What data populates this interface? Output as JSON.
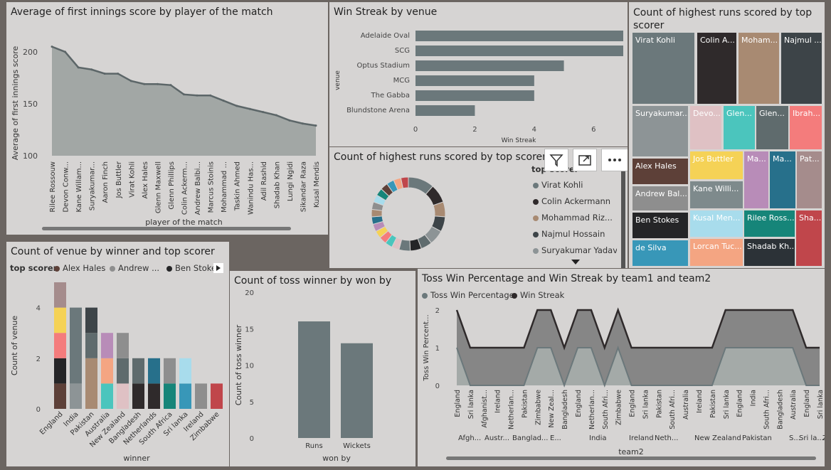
{
  "panel1": {
    "title": "Average of first innings score by player of the match",
    "xlabel": "player of the match",
    "ylabel": "Average of first innings score"
  },
  "panel2": {
    "title": "Win Streak by venue",
    "xlabel": "Win Streak",
    "ylabel": "venue"
  },
  "panel3": {
    "title_line1": "Count of highest runs scored by top",
    "title_line2": "scorer"
  },
  "panel4": {
    "title": "Count of highest runs scored by top scorer",
    "legend_title": "top scorer",
    "legend": [
      {
        "label": "Virat Kohli",
        "color": "#6b787b"
      },
      {
        "label": "Colin Ackermann",
        "color": "#2f2a2b"
      },
      {
        "label": "Mohammad Riz...",
        "color": "#a88a72"
      },
      {
        "label": "Najmul Hossain",
        "color": "#3d4448"
      },
      {
        "label": "Suryakumar Yadav",
        "color": "#8d9496"
      }
    ]
  },
  "panel5": {
    "title": "Count of venue by winner and top scorer",
    "legend_title": "top scorer",
    "legend": [
      {
        "label": "Alex Hales",
        "color": "#5d4038"
      },
      {
        "label": "Andrew ...",
        "color": "#8e8e8e"
      },
      {
        "label": "Ben Stokes",
        "color": "#252527"
      }
    ],
    "xlabel": "winner",
    "ylabel": "Count of venue"
  },
  "panel6": {
    "title": "Count of toss winner by won by",
    "xlabel": "won by",
    "ylabel": "Count of toss winner"
  },
  "panel7": {
    "title": "Toss Win Percentage and Win Streak by team1 and team2",
    "legend": [
      {
        "label": "Toss Win Percentage",
        "color": "#6b787b"
      },
      {
        "label": "Win Streak",
        "color": "#2f2a2b"
      }
    ],
    "xlabel": "team2",
    "ylabel": "Toss Win Percent..."
  },
  "colors": {
    "panel_bg": "#d6d4d3",
    "background": "#6b6561",
    "bar": "#6b787b"
  },
  "chart_data": [
    {
      "id": "avg-first-innings",
      "type": "area",
      "categories": [
        "Rilee Rossouw",
        "Devon Conw...",
        "Kane Willam...",
        "Suryakumar...",
        "Aaron Finch",
        "Jos Buttler",
        "Virat Kohli",
        "Alex Hales",
        "Glenn Maxwell",
        "Glenn Phillips",
        "Colin Ackerm...",
        "Andrew Balbi...",
        "Marcus Stoinis",
        "Mohammad ...",
        "Taskin Ahmed",
        "Wanindu Has...",
        "Adil Rashid",
        "Shadab Khan",
        "Lungi Ngidi",
        "Sikandar Raza",
        "Kusal Mendis"
      ],
      "values": [
        205,
        200,
        185,
        183,
        179,
        179,
        172,
        169,
        169,
        168,
        159,
        158,
        158,
        153,
        148,
        145,
        142,
        139,
        134,
        131,
        129
      ],
      "xlabel": "player of the match",
      "ylabel": "Average of first innings score",
      "ylim": [
        100,
        215
      ],
      "yticks": [
        100,
        150,
        200
      ]
    },
    {
      "id": "win-streak-venue",
      "type": "bar",
      "orientation": "horizontal",
      "categories": [
        "Adelaide Oval",
        "SCG",
        "Optus Stadium",
        "MCG",
        "The Gabba",
        "Blundstone Arena"
      ],
      "values": [
        7,
        7,
        5,
        4,
        4,
        2
      ],
      "xlabel": "Win Streak",
      "ylabel": "venue",
      "xlim": [
        0,
        7
      ],
      "xticks": [
        0,
        2,
        4,
        6
      ]
    },
    {
      "id": "treemap-top-scorer",
      "type": "treemap",
      "items": [
        {
          "label": "Virat Kohli",
          "color": "#6b787b"
        },
        {
          "label": "Colin A...",
          "color": "#2f2a2b"
        },
        {
          "label": "Moham...",
          "color": "#a88a72"
        },
        {
          "label": "Najmul ...",
          "color": "#3d4448"
        },
        {
          "label": "Suryakumar...",
          "color": "#8d9496"
        },
        {
          "label": "Devo...",
          "color": "#dfc1c4"
        },
        {
          "label": "Glen...",
          "color": "#4bc5bd"
        },
        {
          "label": "Glen...",
          "color": "#5f6b6d"
        },
        {
          "label": "Ibrah...",
          "color": "#f47c7c"
        },
        {
          "label": "Alex Hales",
          "color": "#5d4038"
        },
        {
          "label": "Jos Buttler",
          "color": "#f5d256"
        },
        {
          "label": "Ma...",
          "color": "#b88cb8"
        },
        {
          "label": "Ma...",
          "color": "#27708b"
        },
        {
          "label": "Pat...",
          "color": "#a58c8c"
        },
        {
          "label": "Andrew Bal...",
          "color": "#8e8e8e"
        },
        {
          "label": "Kane Willi...",
          "color": "#7e8a8c"
        },
        {
          "label": "Ben Stokes",
          "color": "#252527"
        },
        {
          "label": "Kusal Men...",
          "color": "#a8dcec"
        },
        {
          "label": "Rilee Ross...",
          "color": "#168579"
        },
        {
          "label": "Sha...",
          "color": "#c0464b"
        },
        {
          "label": "de Silva",
          "color": "#3897b8"
        },
        {
          "label": "Lorcan Tuc...",
          "color": "#f4a582"
        },
        {
          "label": "Shadab Kh...",
          "color": "#2c3237"
        }
      ]
    },
    {
      "id": "donut-top-scorer",
      "type": "pie",
      "donut": true,
      "slices": [
        {
          "value": 7,
          "color": "#6b787b"
        },
        {
          "value": 5,
          "color": "#2f2a2b"
        },
        {
          "value": 4,
          "color": "#a88a72"
        },
        {
          "value": 4,
          "color": "#3d4448"
        },
        {
          "value": 4,
          "color": "#8d9496"
        },
        {
          "value": 3,
          "color": "#5f6b6d"
        },
        {
          "value": 3,
          "color": "#252527"
        },
        {
          "value": 3,
          "color": "#6b787b"
        },
        {
          "value": 2,
          "color": "#dfc1c4"
        },
        {
          "value": 2,
          "color": "#4bc5bd"
        },
        {
          "value": 2,
          "color": "#f47c7c"
        },
        {
          "value": 2,
          "color": "#f5d256"
        },
        {
          "value": 2,
          "color": "#b88cb8"
        },
        {
          "value": 2,
          "color": "#27708b"
        },
        {
          "value": 2,
          "color": "#a88a72"
        },
        {
          "value": 2,
          "color": "#8e8e8e"
        },
        {
          "value": 2,
          "color": "#a8dcec"
        },
        {
          "value": 2,
          "color": "#168579"
        },
        {
          "value": 2,
          "color": "#5d4038"
        },
        {
          "value": 2,
          "color": "#3897b8"
        },
        {
          "value": 2,
          "color": "#f4a582"
        },
        {
          "value": 2,
          "color": "#c0464b"
        }
      ]
    },
    {
      "id": "venue-by-winner",
      "type": "bar",
      "stacked": true,
      "categories": [
        "England",
        "India",
        "Pakistan",
        "Australia",
        "New Zealand",
        "Bangladesh",
        "Netherlands",
        "South Africa",
        "Sri lanka",
        "Ireland",
        "Zimbabwe"
      ],
      "stacks": [
        [
          {
            "v": 1,
            "c": "#5d4038"
          },
          {
            "v": 1,
            "c": "#252527"
          },
          {
            "v": 1,
            "c": "#f47c7c"
          },
          {
            "v": 1,
            "c": "#f5d256"
          },
          {
            "v": 1,
            "c": "#a58c8c"
          }
        ],
        [
          {
            "v": 1,
            "c": "#8d9496"
          },
          {
            "v": 3,
            "c": "#6b787b"
          }
        ],
        [
          {
            "v": 2,
            "c": "#a88a72"
          },
          {
            "v": 1,
            "c": "#5f6b6d"
          },
          {
            "v": 1,
            "c": "#3d4448"
          }
        ],
        [
          {
            "v": 1,
            "c": "#4bc5bd"
          },
          {
            "v": 1,
            "c": "#f4a582"
          },
          {
            "v": 1,
            "c": "#b88cb8"
          }
        ],
        [
          {
            "v": 1,
            "c": "#dfc1c4"
          },
          {
            "v": 1,
            "c": "#5f6b6d"
          },
          {
            "v": 1,
            "c": "#8e8e8e"
          }
        ],
        [
          {
            "v": 1,
            "c": "#2f2a2b"
          },
          {
            "v": 1,
            "c": "#5f6b6d"
          }
        ],
        [
          {
            "v": 1,
            "c": "#2f2a2b"
          },
          {
            "v": 1,
            "c": "#27708b"
          }
        ],
        [
          {
            "v": 1,
            "c": "#168579"
          },
          {
            "v": 1,
            "c": "#8e8e8e"
          }
        ],
        [
          {
            "v": 1,
            "c": "#3897b8"
          },
          {
            "v": 1,
            "c": "#a8dcec"
          }
        ],
        [
          {
            "v": 1,
            "c": "#8e8e8e"
          }
        ],
        [
          {
            "v": 1,
            "c": "#c0464b"
          }
        ]
      ],
      "xlabel": "winner",
      "ylabel": "Count of venue",
      "ylim": [
        0,
        5
      ],
      "yticks": [
        0,
        2,
        4
      ]
    },
    {
      "id": "toss-winner-by-won-by",
      "type": "bar",
      "categories": [
        "Runs",
        "Wickets"
      ],
      "values": [
        16,
        13
      ],
      "xlabel": "won by",
      "ylabel": "Count of toss winner",
      "ylim": [
        0,
        20
      ],
      "yticks": [
        0,
        5,
        10,
        15,
        20
      ]
    },
    {
      "id": "toss-win-streak",
      "type": "area",
      "categories": [
        "England",
        "Sri lanka",
        "Afghanist...",
        "Ireland",
        "Netherlan...",
        "Pakistan",
        "Zimbabwe",
        "New Zeal...",
        "Bangladesh",
        "England",
        "Netherlan...",
        "South Afri...",
        "Zimbabwe",
        "England",
        "Sri lanka",
        "Pakistan",
        "South Afri...",
        "Australia",
        "Ireland",
        "Pakistan",
        "Sri lanka",
        "England",
        "India",
        "South Afri...",
        "Bangladesh",
        "Australia",
        "England",
        "Sri lanka"
      ],
      "groups": [
        "Afgh...",
        "Austr...",
        "Banglad...",
        "E...",
        "India",
        "Ireland",
        "Neth...",
        "New Zealand",
        "Pakistan",
        "S...",
        "Sri la...",
        "Z..."
      ],
      "series": [
        {
          "name": "Win Streak",
          "values": [
            2,
            1,
            1,
            1,
            1,
            1,
            2,
            2,
            1,
            2,
            2,
            1,
            2,
            1,
            1,
            1,
            1,
            1,
            1,
            1,
            2,
            2,
            2,
            2,
            2,
            2,
            1,
            1
          ]
        },
        {
          "name": "Toss Win Percentage",
          "values": [
            1,
            0,
            0,
            0,
            0,
            0,
            1,
            1,
            0,
            1,
            1,
            0,
            1,
            0,
            0,
            0,
            0,
            0,
            0,
            0,
            1,
            1,
            1,
            1,
            1,
            1,
            0,
            0
          ]
        }
      ],
      "xlabel": "team2",
      "ylabel": "Toss Win Percent...",
      "ylim": [
        0,
        2
      ],
      "yticks": [
        0,
        1,
        2
      ]
    }
  ]
}
